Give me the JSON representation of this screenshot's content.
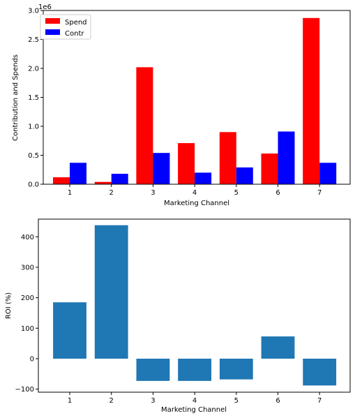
{
  "colors": {
    "spend": "#ff0000",
    "contr": "#0000ff",
    "roi": "#1f77b4",
    "axis": "#000000",
    "legend_border": "#cccccc"
  },
  "chart_data": [
    {
      "type": "bar",
      "categories": [
        "1",
        "2",
        "3",
        "4",
        "5",
        "6",
        "7"
      ],
      "series": [
        {
          "name": "Spend",
          "values": [
            120000,
            40000,
            2020000,
            710000,
            900000,
            530000,
            2870000
          ]
        },
        {
          "name": "Contr",
          "values": [
            370000,
            180000,
            540000,
            200000,
            290000,
            910000,
            370000
          ]
        }
      ],
      "xlabel": "Marketing Channel",
      "ylabel": "Contribution and Spends",
      "ylim": [
        0,
        3000000
      ],
      "yticks": [
        "0.0",
        "0.5",
        "1.0",
        "1.5",
        "2.0",
        "2.5",
        "3.0"
      ],
      "yticks_values": [
        0,
        500000,
        1000000,
        1500000,
        2000000,
        2500000,
        3000000
      ],
      "offset_text": "1e6",
      "legend_position": "upper-left",
      "grid": false
    },
    {
      "type": "bar",
      "categories": [
        "1",
        "2",
        "3",
        "4",
        "5",
        "6",
        "7"
      ],
      "values": [
        185,
        438,
        -73,
        -73,
        -68,
        73,
        -88
      ],
      "xlabel": "Marketing Channel",
      "ylabel": "ROI (%)",
      "ylim": [
        -110,
        458
      ],
      "yticks": [
        "−100",
        "0",
        "100",
        "200",
        "300",
        "400"
      ],
      "yticks_values": [
        -100,
        0,
        100,
        200,
        300,
        400
      ],
      "grid": false
    }
  ]
}
